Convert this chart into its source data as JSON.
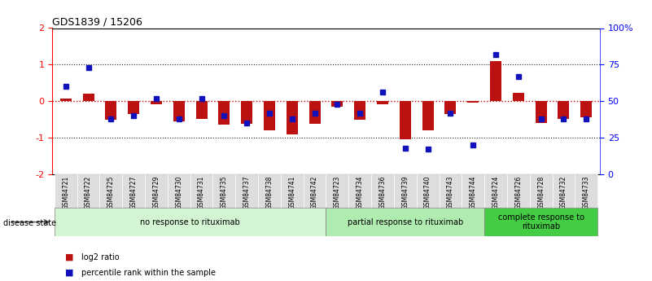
{
  "title": "GDS1839 / 15206",
  "samples": [
    "GSM84721",
    "GSM84722",
    "GSM84725",
    "GSM84727",
    "GSM84729",
    "GSM84730",
    "GSM84731",
    "GSM84735",
    "GSM84737",
    "GSM84738",
    "GSM84741",
    "GSM84742",
    "GSM84723",
    "GSM84734",
    "GSM84736",
    "GSM84739",
    "GSM84740",
    "GSM84743",
    "GSM84744",
    "GSM84724",
    "GSM84726",
    "GSM84728",
    "GSM84732",
    "GSM84733"
  ],
  "log2_ratio": [
    0.08,
    0.2,
    -0.5,
    -0.35,
    -0.08,
    -0.55,
    -0.48,
    -0.65,
    -0.62,
    -0.8,
    -0.9,
    -0.62,
    -0.15,
    -0.5,
    -0.08,
    -1.05,
    -0.8,
    -0.35,
    -0.05,
    1.1,
    0.22,
    -0.6,
    -0.48,
    -0.45
  ],
  "percentile": [
    60,
    73,
    38,
    40,
    52,
    38,
    52,
    40,
    35,
    42,
    38,
    42,
    48,
    42,
    56,
    18,
    17,
    42,
    20,
    82,
    67,
    38,
    38,
    38
  ],
  "groups": [
    {
      "label": "no response to rituximab",
      "start": 0,
      "end": 12,
      "color": "#d4f5d4"
    },
    {
      "label": "partial response to rituximab",
      "start": 12,
      "end": 19,
      "color": "#b0ebb0"
    },
    {
      "label": "complete response to\nrituximab",
      "start": 19,
      "end": 24,
      "color": "#44cc44"
    }
  ],
  "ylim": [
    -2,
    2
  ],
  "right_ylim": [
    0,
    100
  ],
  "bar_color_red": "#bb1111",
  "bar_color_blue": "#1111bb",
  "zero_line_color": "#cc0000",
  "dotted_line_color": "#222222",
  "background_color": "#ffffff",
  "label_bg_color": "#dddddd"
}
